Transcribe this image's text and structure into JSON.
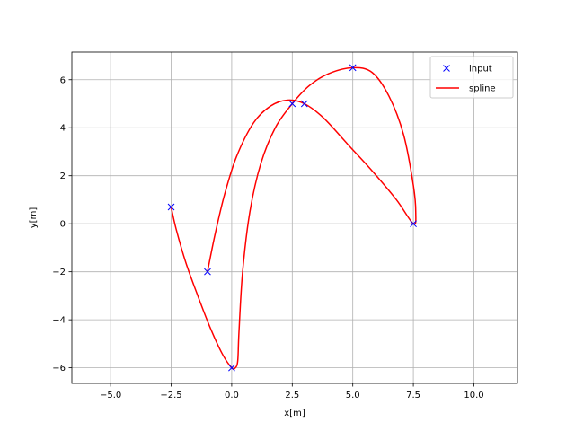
{
  "chart_data": {
    "type": "line",
    "xlabel": "x[m]",
    "ylabel": "y[m]",
    "xlim": [
      -6.6,
      11.8
    ],
    "ylim": [
      -6.65,
      7.15
    ],
    "grid": true,
    "legend_position": "top-right",
    "x_ticks": [
      {
        "value": -5.0,
        "label": "−5.0"
      },
      {
        "value": -2.5,
        "label": "−2.5"
      },
      {
        "value": 0.0,
        "label": "0.0"
      },
      {
        "value": 2.5,
        "label": "2.5"
      },
      {
        "value": 5.0,
        "label": "5.0"
      },
      {
        "value": 7.5,
        "label": "7.5"
      },
      {
        "value": 10.0,
        "label": "10.0"
      }
    ],
    "y_ticks": [
      {
        "value": -6,
        "label": "−6"
      },
      {
        "value": -4,
        "label": "−4"
      },
      {
        "value": -2,
        "label": "−2"
      },
      {
        "value": 0,
        "label": "0"
      },
      {
        "value": 2,
        "label": "2"
      },
      {
        "value": 4,
        "label": "4"
      },
      {
        "value": 6,
        "label": "6"
      }
    ],
    "series": [
      {
        "name": "input",
        "kind": "markers",
        "marker": "x",
        "color": "#0000ff",
        "points": [
          {
            "x": -2.5,
            "y": 0.7
          },
          {
            "x": 0.0,
            "y": -6.0
          },
          {
            "x": 2.5,
            "y": 5.0
          },
          {
            "x": 5.0,
            "y": 6.5
          },
          {
            "x": 7.5,
            "y": 0.0
          },
          {
            "x": 3.0,
            "y": 5.0
          },
          {
            "x": -1.0,
            "y": -2.0
          }
        ]
      },
      {
        "name": "spline",
        "kind": "line",
        "color": "#ff0000",
        "points": [
          {
            "x": -2.5,
            "y": 0.7
          },
          {
            "x": -2.3,
            "y": -0.2
          },
          {
            "x": -1.9,
            "y": -1.6
          },
          {
            "x": -1.4,
            "y": -3.0
          },
          {
            "x": -0.9,
            "y": -4.3
          },
          {
            "x": -0.4,
            "y": -5.4
          },
          {
            "x": 0.0,
            "y": -6.0
          },
          {
            "x": 0.15,
            "y": -6.0
          },
          {
            "x": 0.25,
            "y": -5.7
          },
          {
            "x": 0.3,
            "y": -4.5
          },
          {
            "x": 0.45,
            "y": -2.0
          },
          {
            "x": 0.75,
            "y": 0.5
          },
          {
            "x": 1.2,
            "y": 2.5
          },
          {
            "x": 1.8,
            "y": 4.0
          },
          {
            "x": 2.5,
            "y": 5.0
          },
          {
            "x": 3.2,
            "y": 5.75
          },
          {
            "x": 4.0,
            "y": 6.25
          },
          {
            "x": 5.0,
            "y": 6.5
          },
          {
            "x": 5.8,
            "y": 6.3
          },
          {
            "x": 6.5,
            "y": 5.3
          },
          {
            "x": 7.1,
            "y": 3.7
          },
          {
            "x": 7.5,
            "y": 1.6
          },
          {
            "x": 7.6,
            "y": 0.45
          },
          {
            "x": 7.5,
            "y": 0.0
          },
          {
            "x": 6.8,
            "y": 1.0
          },
          {
            "x": 5.8,
            "y": 2.2
          },
          {
            "x": 4.8,
            "y": 3.3
          },
          {
            "x": 3.8,
            "y": 4.4
          },
          {
            "x": 3.0,
            "y": 5.0
          },
          {
            "x": 2.3,
            "y": 5.15
          },
          {
            "x": 1.6,
            "y": 4.9
          },
          {
            "x": 0.9,
            "y": 4.2
          },
          {
            "x": 0.2,
            "y": 2.8
          },
          {
            "x": -0.3,
            "y": 1.2
          },
          {
            "x": -0.7,
            "y": -0.5
          },
          {
            "x": -1.0,
            "y": -2.0
          }
        ]
      }
    ]
  }
}
